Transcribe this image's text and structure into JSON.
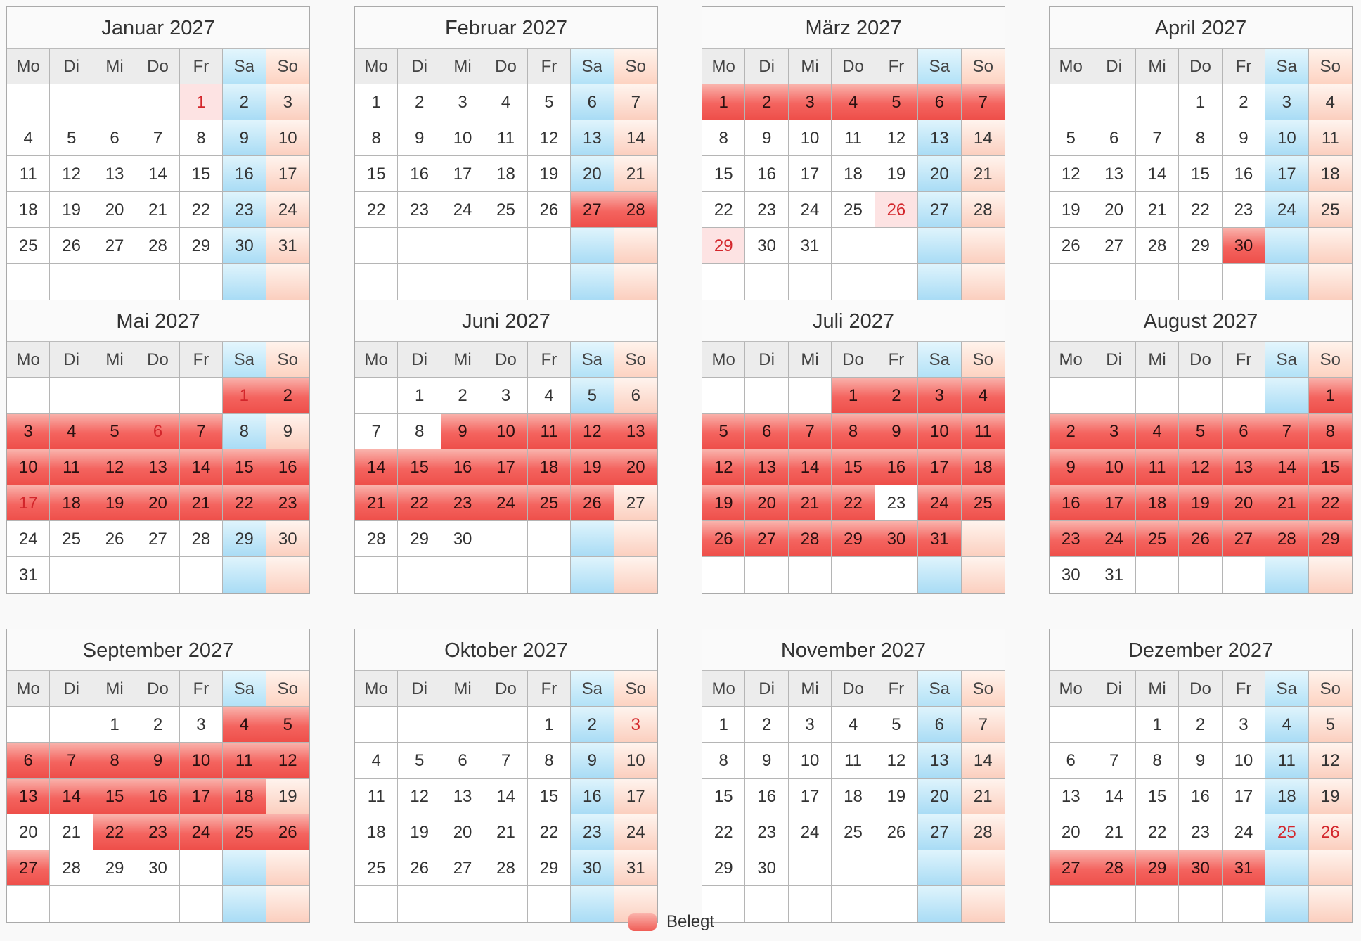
{
  "weekdays": [
    "Mo",
    "Di",
    "Mi",
    "Do",
    "Fr",
    "Sa",
    "So"
  ],
  "months": [
    {
      "title": "Januar 2027",
      "offset": 4,
      "days": 31,
      "booked": [],
      "half": [
        1
      ],
      "holidays": [
        1
      ]
    },
    {
      "title": "Februar 2027",
      "offset": 0,
      "days": 28,
      "booked": [
        27,
        28
      ],
      "half": [],
      "holidays": []
    },
    {
      "title": "März 2027",
      "offset": 0,
      "days": 31,
      "booked": [
        1,
        2,
        3,
        4,
        5,
        6,
        7
      ],
      "half": [
        26,
        29
      ],
      "holidays": [
        26,
        29
      ]
    },
    {
      "title": "April 2027",
      "offset": 3,
      "days": 30,
      "booked": [
        30
      ],
      "half": [],
      "holidays": []
    },
    {
      "title": "Mai 2027",
      "offset": 5,
      "days": 31,
      "booked": [
        1,
        2,
        3,
        4,
        5,
        6,
        7,
        10,
        11,
        12,
        13,
        14,
        15,
        16,
        17,
        18,
        19,
        20,
        21,
        22,
        23
      ],
      "half": [],
      "holidays": [
        1,
        6,
        17
      ]
    },
    {
      "title": "Juni 2027",
      "offset": 1,
      "days": 30,
      "booked": [
        9,
        10,
        11,
        12,
        13,
        14,
        15,
        16,
        17,
        18,
        19,
        20,
        21,
        22,
        23,
        24,
        25,
        26
      ],
      "half": [],
      "holidays": []
    },
    {
      "title": "Juli 2027",
      "offset": 3,
      "days": 31,
      "booked": [
        1,
        2,
        3,
        4,
        5,
        6,
        7,
        8,
        9,
        10,
        11,
        12,
        13,
        14,
        15,
        16,
        17,
        18,
        19,
        20,
        21,
        22,
        24,
        25,
        26,
        27,
        28,
        29,
        30,
        31
      ],
      "half": [],
      "holidays": []
    },
    {
      "title": "August 2027",
      "offset": 6,
      "days": 31,
      "booked": [
        1,
        2,
        3,
        4,
        5,
        6,
        7,
        8,
        9,
        10,
        11,
        12,
        13,
        14,
        15,
        16,
        17,
        18,
        19,
        20,
        21,
        22,
        23,
        24,
        25,
        26,
        27,
        28,
        29
      ],
      "half": [],
      "holidays": []
    },
    {
      "title": "September 2027",
      "offset": 2,
      "days": 30,
      "booked": [
        4,
        5,
        6,
        7,
        8,
        9,
        10,
        11,
        12,
        13,
        14,
        15,
        16,
        17,
        18,
        22,
        23,
        24,
        25,
        26,
        27
      ],
      "half": [],
      "holidays": []
    },
    {
      "title": "Oktober 2027",
      "offset": 4,
      "days": 31,
      "booked": [],
      "half": [],
      "holidays": [
        3
      ]
    },
    {
      "title": "November 2027",
      "offset": 0,
      "days": 30,
      "booked": [],
      "half": [],
      "holidays": []
    },
    {
      "title": "Dezember 2027",
      "offset": 2,
      "days": 31,
      "booked": [
        27,
        28,
        29,
        30,
        31
      ],
      "half": [],
      "holidays": [
        25,
        26
      ]
    }
  ],
  "legend": {
    "label": "Belegt"
  }
}
